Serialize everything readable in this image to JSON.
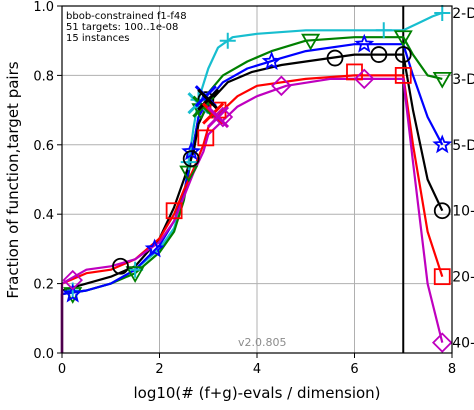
{
  "chart_data": {
    "type": "line",
    "title": "",
    "xlabel": "log10(# (f+g)-evals / dimension)",
    "ylabel": "Fraction of function,target pairs",
    "xlim": [
      0,
      8
    ],
    "ylim": [
      0,
      1.0
    ],
    "x_ticks": [
      "0",
      "2",
      "4",
      "6",
      "8"
    ],
    "y_ticks": [
      "0.0",
      "0.2",
      "0.4",
      "0.6",
      "0.8",
      "1.0"
    ],
    "grid": true,
    "annotations": [
      "bbob-constrained f1-f48",
      "51 targets: 100..1e-08",
      "15 instances"
    ],
    "version_label": "v2.0.805",
    "budget_line_x": 7.0,
    "series": [
      {
        "name": "2-D",
        "color": "#17becf",
        "marker": "plus",
        "points": [
          [
            0.0,
            0.0
          ],
          [
            0.0,
            0.17
          ],
          [
            0.5,
            0.18
          ],
          [
            1.0,
            0.2
          ],
          [
            1.5,
            0.24
          ],
          [
            2.0,
            0.3
          ],
          [
            2.3,
            0.36
          ],
          [
            2.5,
            0.45
          ],
          [
            2.6,
            0.55
          ],
          [
            2.7,
            0.65
          ],
          [
            2.8,
            0.73
          ],
          [
            3.0,
            0.82
          ],
          [
            3.2,
            0.88
          ],
          [
            3.5,
            0.91
          ],
          [
            4.0,
            0.92
          ],
          [
            5.0,
            0.93
          ],
          [
            6.0,
            0.93
          ],
          [
            7.0,
            0.93
          ],
          [
            7.3,
            0.95
          ],
          [
            7.6,
            0.97
          ],
          [
            7.8,
            0.98
          ]
        ],
        "marker_points": [
          [
            0.22,
            0.18
          ],
          [
            1.5,
            0.24
          ],
          [
            2.6,
            0.55
          ],
          [
            2.8,
            0.73
          ],
          [
            3.4,
            0.9
          ],
          [
            6.6,
            0.93
          ],
          [
            7.8,
            0.98
          ]
        ]
      },
      {
        "name": "3-D",
        "color": "#008000",
        "marker": "triangle-down",
        "points": [
          [
            0.0,
            0.0
          ],
          [
            0.0,
            0.17
          ],
          [
            0.5,
            0.18
          ],
          [
            1.0,
            0.2
          ],
          [
            1.5,
            0.23
          ],
          [
            2.0,
            0.29
          ],
          [
            2.3,
            0.35
          ],
          [
            2.5,
            0.44
          ],
          [
            2.6,
            0.52
          ],
          [
            2.7,
            0.6
          ],
          [
            2.8,
            0.68
          ],
          [
            3.0,
            0.75
          ],
          [
            3.3,
            0.8
          ],
          [
            3.8,
            0.84
          ],
          [
            4.3,
            0.87
          ],
          [
            5.0,
            0.9
          ],
          [
            6.0,
            0.91
          ],
          [
            7.0,
            0.91
          ],
          [
            7.2,
            0.86
          ],
          [
            7.5,
            0.8
          ],
          [
            7.8,
            0.79
          ]
        ],
        "marker_points": [
          [
            0.22,
            0.17
          ],
          [
            1.5,
            0.23
          ],
          [
            2.6,
            0.52
          ],
          [
            2.85,
            0.7
          ],
          [
            5.1,
            0.9
          ],
          [
            7.0,
            0.91
          ],
          [
            7.8,
            0.79
          ]
        ]
      },
      {
        "name": "5-D",
        "color": "#0000ff",
        "marker": "star",
        "points": [
          [
            0.0,
            0.0
          ],
          [
            0.0,
            0.17
          ],
          [
            0.5,
            0.18
          ],
          [
            1.0,
            0.2
          ],
          [
            1.5,
            0.24
          ],
          [
            2.0,
            0.31
          ],
          [
            2.3,
            0.38
          ],
          [
            2.5,
            0.46
          ],
          [
            2.7,
            0.6
          ],
          [
            2.8,
            0.68
          ],
          [
            3.0,
            0.73
          ],
          [
            3.3,
            0.78
          ],
          [
            3.8,
            0.82
          ],
          [
            4.5,
            0.85
          ],
          [
            5.0,
            0.87
          ],
          [
            6.0,
            0.89
          ],
          [
            7.0,
            0.89
          ],
          [
            7.2,
            0.8
          ],
          [
            7.5,
            0.68
          ],
          [
            7.8,
            0.6
          ]
        ],
        "marker_points": [
          [
            0.22,
            0.17
          ],
          [
            1.9,
            0.3
          ],
          [
            2.65,
            0.58
          ],
          [
            2.9,
            0.72
          ],
          [
            4.3,
            0.84
          ],
          [
            6.2,
            0.89
          ],
          [
            7.8,
            0.6
          ]
        ]
      },
      {
        "name": "10-D",
        "color": "#000000",
        "marker": "circle",
        "points": [
          [
            0.0,
            0.0
          ],
          [
            0.0,
            0.18
          ],
          [
            0.5,
            0.2
          ],
          [
            1.0,
            0.22
          ],
          [
            1.5,
            0.25
          ],
          [
            2.0,
            0.33
          ],
          [
            2.3,
            0.42
          ],
          [
            2.5,
            0.5
          ],
          [
            2.7,
            0.58
          ],
          [
            2.8,
            0.66
          ],
          [
            3.0,
            0.72
          ],
          [
            3.4,
            0.78
          ],
          [
            3.9,
            0.81
          ],
          [
            4.5,
            0.83
          ],
          [
            5.0,
            0.84
          ],
          [
            6.0,
            0.86
          ],
          [
            6.5,
            0.86
          ],
          [
            7.0,
            0.86
          ],
          [
            7.2,
            0.7
          ],
          [
            7.5,
            0.5
          ],
          [
            7.8,
            0.41
          ]
        ],
        "marker_points": [
          [
            1.2,
            0.25
          ],
          [
            2.65,
            0.56
          ],
          [
            2.95,
            0.73
          ],
          [
            5.6,
            0.85
          ],
          [
            6.5,
            0.86
          ],
          [
            7.0,
            0.86
          ],
          [
            7.8,
            0.41
          ]
        ]
      },
      {
        "name": "20-D",
        "color": "#ff0000",
        "marker": "square",
        "points": [
          [
            0.0,
            0.0
          ],
          [
            0.0,
            0.2
          ],
          [
            0.5,
            0.23
          ],
          [
            1.0,
            0.24
          ],
          [
            1.5,
            0.27
          ],
          [
            2.0,
            0.33
          ],
          [
            2.3,
            0.4
          ],
          [
            2.5,
            0.47
          ],
          [
            2.7,
            0.53
          ],
          [
            2.9,
            0.6
          ],
          [
            3.0,
            0.65
          ],
          [
            3.3,
            0.7
          ],
          [
            3.6,
            0.74
          ],
          [
            4.0,
            0.77
          ],
          [
            5.0,
            0.79
          ],
          [
            6.0,
            0.8
          ],
          [
            7.0,
            0.8
          ],
          [
            7.2,
            0.6
          ],
          [
            7.5,
            0.35
          ],
          [
            7.8,
            0.22
          ]
        ],
        "marker_points": [
          [
            2.3,
            0.41
          ],
          [
            2.95,
            0.62
          ],
          [
            3.2,
            0.7
          ],
          [
            6.0,
            0.81
          ],
          [
            7.0,
            0.8
          ],
          [
            7.8,
            0.22
          ]
        ]
      },
      {
        "name": "40-D",
        "color": "#bf00bf",
        "marker": "diamond",
        "points": [
          [
            0.0,
            0.0
          ],
          [
            0.0,
            0.2
          ],
          [
            0.5,
            0.24
          ],
          [
            1.0,
            0.25
          ],
          [
            1.5,
            0.27
          ],
          [
            2.0,
            0.32
          ],
          [
            2.3,
            0.38
          ],
          [
            2.5,
            0.45
          ],
          [
            2.7,
            0.52
          ],
          [
            2.9,
            0.58
          ],
          [
            3.0,
            0.63
          ],
          [
            3.3,
            0.67
          ],
          [
            3.6,
            0.71
          ],
          [
            4.0,
            0.74
          ],
          [
            4.6,
            0.77
          ],
          [
            5.5,
            0.79
          ],
          [
            6.0,
            0.79
          ],
          [
            7.0,
            0.79
          ],
          [
            7.2,
            0.55
          ],
          [
            7.5,
            0.2
          ],
          [
            7.8,
            0.03
          ]
        ],
        "marker_points": [
          [
            0.22,
            0.21
          ],
          [
            3.3,
            0.68
          ],
          [
            4.5,
            0.77
          ],
          [
            6.2,
            0.79
          ],
          [
            7.8,
            0.03
          ]
        ]
      }
    ]
  }
}
